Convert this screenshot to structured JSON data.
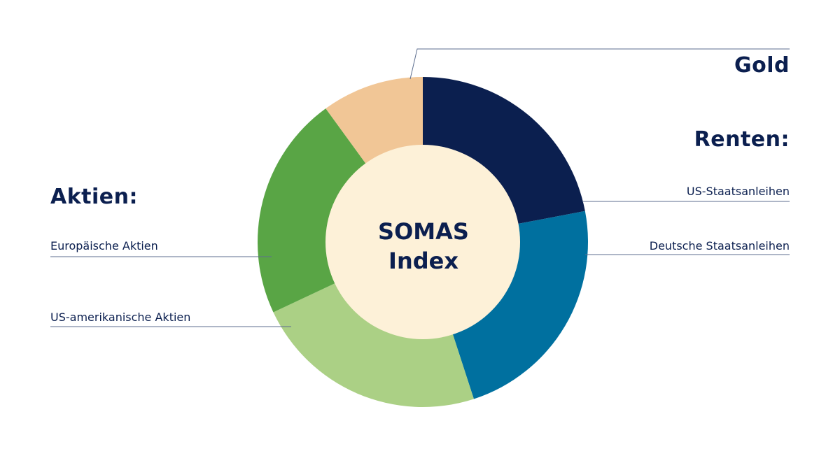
{
  "chart_data": {
    "type": "pie",
    "center_label": [
      "SOMAS",
      "Index"
    ],
    "slices": [
      {
        "label": "US-Staatsanleihen",
        "value": 22,
        "color": "#0b1f4f"
      },
      {
        "label": "Deutsche Staatsanleihen",
        "value": 23,
        "color": "#00709f"
      },
      {
        "label": "US-amerikanische Aktien",
        "value": 23,
        "color": "#abd085"
      },
      {
        "label": "Europäische Aktien",
        "value": 22,
        "color": "#59a545"
      },
      {
        "label": "Gold",
        "value": 10,
        "color": "#f1c696"
      }
    ],
    "groups": {
      "gold": "Gold",
      "renten": "Renten:",
      "aktien": "Aktien:"
    },
    "center_color": "#fdf1d8",
    "text_color": "#0b1f4f"
  }
}
